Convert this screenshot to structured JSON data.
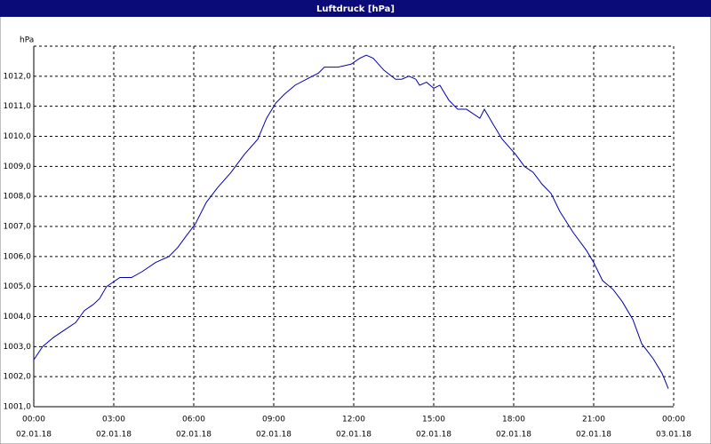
{
  "chart_data": {
    "type": "line",
    "title": "Luftdruck [hPa]",
    "ylabel": "hPa",
    "x": [
      0,
      0.33,
      0.73,
      1.23,
      1.57,
      1.9,
      2.23,
      2.47,
      2.73,
      3.23,
      3.67,
      4.07,
      4.57,
      5.07,
      5.4,
      5.73,
      6.07,
      6.47,
      6.9,
      7.4,
      7.9,
      8.4,
      8.73,
      9.07,
      9.4,
      9.8,
      10.23,
      10.67,
      10.9,
      11.4,
      11.9,
      12.23,
      12.47,
      12.73,
      13.13,
      13.57,
      13.8,
      14.07,
      14.33,
      14.47,
      14.73,
      15.0,
      15.23,
      15.57,
      15.9,
      16.23,
      16.73,
      16.9,
      17.23,
      17.57,
      18.07,
      18.4,
      18.73,
      19.07,
      19.4,
      19.73,
      20.23,
      20.73,
      21.0,
      21.33,
      21.73,
      22.07,
      22.47,
      22.8,
      23.23,
      23.57,
      23.8
    ],
    "series": [
      {
        "color": "#0000b0",
        "values": [
          1002.56,
          1003.0,
          1003.3,
          1003.6,
          1003.8,
          1004.2,
          1004.4,
          1004.6,
          1005.0,
          1005.3,
          1005.3,
          1005.5,
          1005.8,
          1006.0,
          1006.3,
          1006.7,
          1007.1,
          1007.8,
          1008.3,
          1008.8,
          1009.4,
          1009.9,
          1010.6,
          1011.1,
          1011.4,
          1011.7,
          1011.9,
          1012.1,
          1012.3,
          1012.3,
          1012.4,
          1012.6,
          1012.7,
          1012.6,
          1012.2,
          1011.9,
          1011.9,
          1012.0,
          1011.9,
          1011.7,
          1011.8,
          1011.6,
          1011.7,
          1011.2,
          1010.9,
          1010.9,
          1010.6,
          1010.9,
          1010.4,
          1009.9,
          1009.4,
          1009.0,
          1008.8,
          1008.4,
          1008.1,
          1007.5,
          1006.8,
          1006.2,
          1005.8,
          1005.2,
          1004.9,
          1004.5,
          1003.9,
          1003.1,
          1002.6,
          1002.1,
          1001.6
        ]
      }
    ],
    "xlim": [
      0,
      24
    ],
    "ylim": [
      1001,
      1013
    ],
    "xticks": [
      {
        "value": 0,
        "label": "00:00"
      },
      {
        "value": 3,
        "label": "03:00"
      },
      {
        "value": 6,
        "label": "06:00"
      },
      {
        "value": 9,
        "label": "09:00"
      },
      {
        "value": 12,
        "label": "12:00"
      },
      {
        "value": 15,
        "label": "15:00"
      },
      {
        "value": 18,
        "label": "18:00"
      },
      {
        "value": 21,
        "label": "21:00"
      },
      {
        "value": 24,
        "label": "00:00"
      }
    ],
    "xtick_dates": [
      "02.01.18",
      "02.01.18",
      "02.01.18",
      "02.01.18",
      "02.01.18",
      "02.01.18",
      "02.01.18",
      "02.01.18",
      "03.01.18"
    ],
    "yticks": [
      {
        "value": 1001,
        "label": "1001,0"
      },
      {
        "value": 1002,
        "label": "1002,0"
      },
      {
        "value": 1003,
        "label": "1003,0"
      },
      {
        "value": 1004,
        "label": "1004,0"
      },
      {
        "value": 1005,
        "label": "1005,0"
      },
      {
        "value": 1006,
        "label": "1006,0"
      },
      {
        "value": 1007,
        "label": "1007,0"
      },
      {
        "value": 1008,
        "label": "1008,0"
      },
      {
        "value": 1009,
        "label": "1009,0"
      },
      {
        "value": 1010,
        "label": "1010,0"
      },
      {
        "value": 1011,
        "label": "1011,0"
      },
      {
        "value": 1012,
        "label": "1012,0"
      }
    ],
    "grid": true
  }
}
